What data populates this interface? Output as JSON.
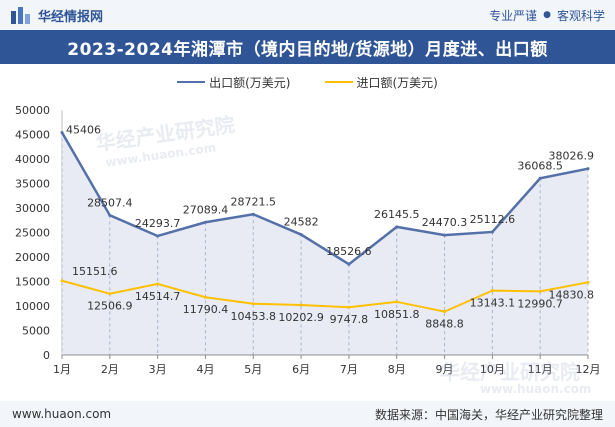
{
  "header": {
    "brand_name": "华经情报网",
    "slogan_left": "专业严谨",
    "slogan_right": "客观科学"
  },
  "title": "2023-2024年湘潭市（境内目的地/货源地）月度进、出口额",
  "footer": {
    "website": "www.huaon.com",
    "source": "数据来源：中国海关，华经产业研究院整理"
  },
  "watermarks": [
    "华经产业研究院",
    "www.huaon.com",
    "华经产业研究院",
    "www.huaon.com"
  ],
  "chart_data": {
    "type": "line",
    "categories": [
      "1月",
      "2月",
      "3月",
      "4月",
      "5月",
      "6月",
      "7月",
      "8月",
      "9月",
      "10月",
      "11月",
      "12月"
    ],
    "ylim": [
      0,
      50000
    ],
    "yticks": [
      0,
      5000,
      10000,
      15000,
      20000,
      25000,
      30000,
      35000,
      40000,
      45000,
      50000
    ],
    "legend_position": "top-center",
    "series": [
      {
        "name": "出口额(万美元)",
        "color": "#5470a8",
        "area_color": "#e8ebf4",
        "values": [
          45406,
          28507.4,
          24293.7,
          27089.4,
          28721.5,
          24582,
          18526.6,
          26145.5,
          24470.3,
          25112.6,
          36068.5,
          38026.9
        ],
        "labels": [
          "45406",
          "28507.4",
          "24293.7",
          "27089.4",
          "28721.5",
          "24582",
          "18526.6",
          "26145.5",
          "24470.3",
          "25112.6",
          "36068.5",
          "38026.9"
        ]
      },
      {
        "name": "进口额(万美元)",
        "color": "#ffc000",
        "values": [
          15151.6,
          12506.9,
          14514.7,
          11790.4,
          10453.8,
          10202.9,
          9747.8,
          10851.8,
          8848.8,
          13143.1,
          12990.7,
          14830.8
        ],
        "labels": [
          "15151.6",
          "12506.9",
          "14514.7",
          "11790.4",
          "10453.8",
          "10202.9",
          "9747.8",
          "10851.8",
          "8848.8",
          "13143.1",
          "12990.7",
          "14830.8"
        ]
      }
    ]
  }
}
